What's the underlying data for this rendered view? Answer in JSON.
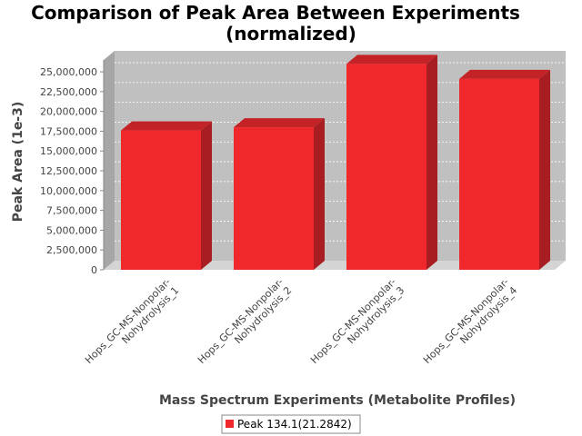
{
  "chart_data": {
    "type": "bar",
    "title": "Comparison of Peak Area Between Experiments",
    "subtitle": "(normalized)",
    "xlabel": "Mass Spectrum Experiments (Metabolite Profiles)",
    "ylabel": "Peak Area (1e-3)",
    "categories": [
      [
        "Hops_GC-MS-Nonpolar-",
        "Nohydrolysis_1"
      ],
      [
        "Hops_GC-MS-Nonpolar-",
        "Nohydrolysis_2"
      ],
      [
        "Hops_GC-MS-Nonpolar-",
        "Nohydrolysis_3"
      ],
      [
        "Hops_GC-MS-Nonpolar-",
        "Nohydrolysis_4"
      ]
    ],
    "series": [
      {
        "name": "Peak 134.1(21.2842)",
        "values": [
          17600000,
          18000000,
          26000000,
          24100000
        ]
      }
    ],
    "ylim": [
      0,
      26500000
    ],
    "yticks": [
      {
        "v": 0,
        "label": "0"
      },
      {
        "v": 2500000,
        "label": "2,500,000"
      },
      {
        "v": 5000000,
        "label": "5,000,000"
      },
      {
        "v": 7500000,
        "label": "7,500,000"
      },
      {
        "v": 10000000,
        "label": "10,000,000"
      },
      {
        "v": 12500000,
        "label": "12,500,000"
      },
      {
        "v": 15000000,
        "label": "15,000,000"
      },
      {
        "v": 17500000,
        "label": "17,500,000"
      },
      {
        "v": 20000000,
        "label": "20,000,000"
      },
      {
        "v": 22500000,
        "label": "22,500,000"
      },
      {
        "v": 25000000,
        "label": "25,000,000"
      }
    ],
    "grid": true,
    "legend_position": "bottom",
    "colors": {
      "bar_front": "#f0282c",
      "bar_top": "#c32226",
      "bar_side": "#a81d21",
      "plot_back": "#c0c0c0",
      "plot_wall": "#a6a6a6",
      "plot_floor": "#d4d4d4"
    }
  }
}
